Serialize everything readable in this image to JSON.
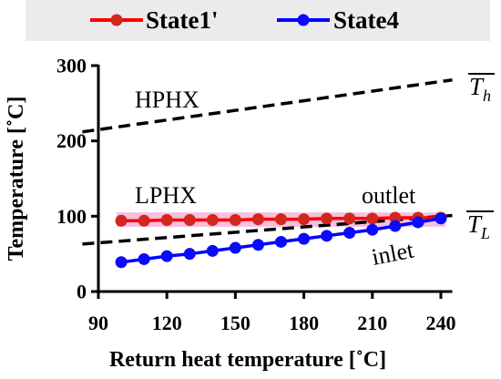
{
  "chart_data": {
    "type": "line",
    "xlabel": "Return heat temperature [˚C]",
    "ylabel": "Temperature [˚C]",
    "xlim": [
      90,
      245
    ],
    "ylim": [
      0,
      300
    ],
    "xticks": [
      90,
      120,
      150,
      180,
      210,
      240
    ],
    "yticks": [
      0,
      100,
      200,
      300
    ],
    "grid": false,
    "legend_position": "top",
    "series": [
      {
        "name": "State1'",
        "color": "#ff0000",
        "marker": "circle",
        "marker_color": "#d3261f",
        "x": [
          100,
          110,
          120,
          130,
          140,
          150,
          160,
          170,
          180,
          190,
          200,
          210,
          220,
          230,
          240
        ],
        "y": [
          94,
          94,
          95,
          95,
          95,
          95,
          96,
          96,
          96,
          97,
          97,
          97,
          98,
          98,
          98
        ]
      },
      {
        "name": "State4",
        "color": "#0000ff",
        "marker": "circle",
        "marker_color": "#0a0aff",
        "x": [
          100,
          110,
          120,
          130,
          140,
          150,
          160,
          170,
          180,
          190,
          200,
          210,
          220,
          230,
          240
        ],
        "y": [
          39,
          43,
          47,
          50,
          54,
          58,
          62,
          66,
          70,
          74,
          78,
          82,
          87,
          92,
          97
        ]
      }
    ],
    "reference_lines": [
      {
        "label": "HPHX",
        "end_label": {
          "base": "T",
          "sub": "h",
          "overline": true
        },
        "style": "dashed",
        "color": "#000000",
        "x": [
          83,
          245
        ],
        "y": [
          212,
          281
        ]
      },
      {
        "label": "LPHX",
        "end_label": {
          "base": "T",
          "sub": "L",
          "overline": true
        },
        "style": "dashed",
        "color": "#000000",
        "x": [
          83,
          245
        ],
        "y": [
          63,
          101
        ]
      }
    ],
    "shaded_band": {
      "color": "#f7bedd",
      "x": [
        98,
        242
      ],
      "y": [
        86,
        105
      ]
    },
    "annotations": [
      "outlet",
      "inlet"
    ]
  }
}
